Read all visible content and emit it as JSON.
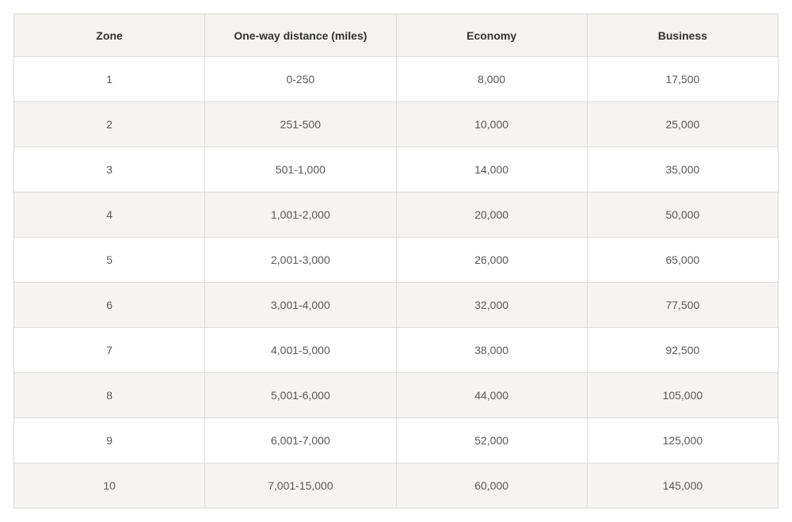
{
  "colors": {
    "header_bg": "#f4f3f1",
    "stripe_bg": "#f5f4f2",
    "border": "#dedcda",
    "outer_border": "#d6d4d2",
    "header_text": "#333333",
    "cell_text": "#595959",
    "page_bg": "#ffffff"
  },
  "chart_data": {
    "type": "table",
    "columns": [
      "Zone",
      "One-way distance (miles)",
      "Economy",
      "Business"
    ],
    "rows": [
      [
        "1",
        "0-250",
        "8,000",
        "17,500"
      ],
      [
        "2",
        "251-500",
        "10,000",
        "25,000"
      ],
      [
        "3",
        "501-1,000",
        "14,000",
        "35,000"
      ],
      [
        "4",
        "1,001-2,000",
        "20,000",
        "50,000"
      ],
      [
        "5",
        "2,001-3,000",
        "26,000",
        "65,000"
      ],
      [
        "6",
        "3,001-4,000",
        "32,000",
        "77,500"
      ],
      [
        "7",
        "4,001-5,000",
        "38,000",
        "92,500"
      ],
      [
        "8",
        "5,001-6,000",
        "44,000",
        "105,000"
      ],
      [
        "9",
        "6,001-7,000",
        "52,000",
        "125,000"
      ],
      [
        "10",
        "7,001-15,000",
        "60,000",
        "145,000"
      ]
    ]
  }
}
